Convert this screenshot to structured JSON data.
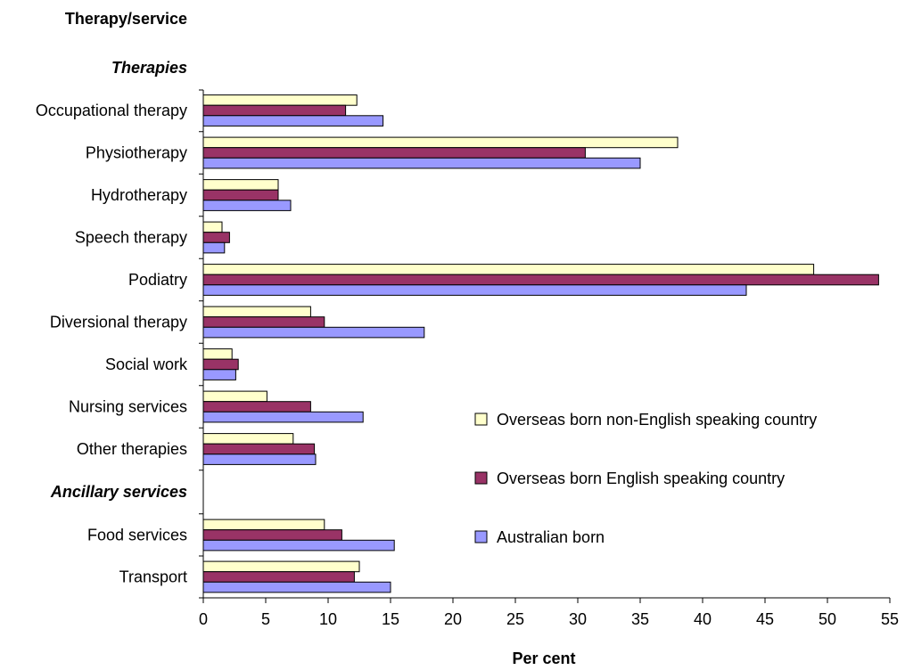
{
  "chart_data": {
    "type": "bar",
    "orientation": "horizontal",
    "ylabel": "Therapy/service",
    "xlabel": "Per cent",
    "xlim": [
      0,
      55
    ],
    "xticks": [
      0,
      5,
      10,
      15,
      20,
      25,
      30,
      35,
      40,
      45,
      50,
      55
    ],
    "grid": false,
    "legend_position": "right",
    "groups": [
      {
        "name": "Therapies",
        "categories": [
          "Occupational therapy",
          "Physiotherapy",
          "Hydrotherapy",
          "Speech therapy",
          "Podiatry",
          "Diversional therapy",
          "Social work",
          "Nursing services",
          "Other therapies"
        ]
      },
      {
        "name": "Ancillary services",
        "categories": [
          "Food services",
          "Transport"
        ]
      }
    ],
    "categories": [
      "Occupational therapy",
      "Physiotherapy",
      "Hydrotherapy",
      "Speech therapy",
      "Podiatry",
      "Diversional therapy",
      "Social work",
      "Nursing services",
      "Other therapies",
      "Food services",
      "Transport"
    ],
    "series": [
      {
        "name": "Overseas born non-English speaking country",
        "color": "#ffffcc",
        "values": [
          12.3,
          38.0,
          6.0,
          1.5,
          48.9,
          8.6,
          2.3,
          5.1,
          7.2,
          9.7,
          12.5
        ]
      },
      {
        "name": "Overseas born English speaking country",
        "color": "#993366",
        "values": [
          11.4,
          30.6,
          6.0,
          2.1,
          54.1,
          9.7,
          2.8,
          8.6,
          8.9,
          11.1,
          12.1
        ]
      },
      {
        "name": "Australian born",
        "color": "#9999ff",
        "values": [
          14.4,
          35.0,
          7.0,
          1.7,
          43.5,
          17.7,
          2.6,
          12.8,
          9.0,
          15.3,
          15.0
        ]
      }
    ]
  }
}
